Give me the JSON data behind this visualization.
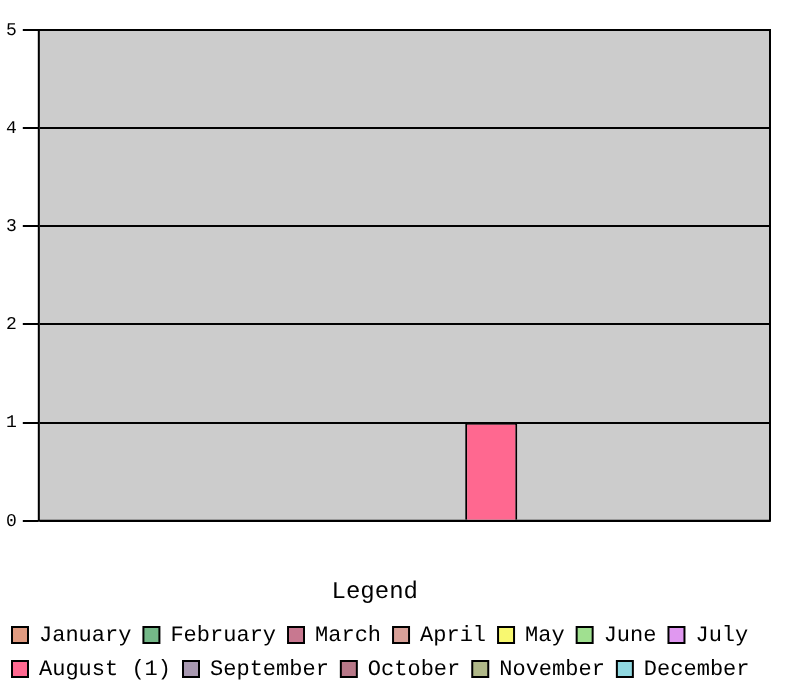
{
  "chart_data": {
    "type": "bar",
    "categories": [
      null
    ],
    "legend_title": "Legend",
    "legend": "bottom",
    "grid": "y",
    "ylim": [
      0,
      5
    ],
    "yticks": [
      0,
      1,
      2,
      3,
      4,
      5
    ],
    "series": [
      {
        "name": "January",
        "color": "#e09a80",
        "values": [
          0
        ]
      },
      {
        "name": "February",
        "color": "#74b888",
        "values": [
          0
        ]
      },
      {
        "name": "March",
        "color": "#c87890",
        "values": [
          0
        ]
      },
      {
        "name": "April",
        "color": "#d8a098",
        "values": [
          0
        ]
      },
      {
        "name": "May",
        "color": "#f8f870",
        "values": [
          0
        ]
      },
      {
        "name": "June",
        "color": "#a0e090",
        "values": [
          0
        ]
      },
      {
        "name": "July",
        "color": "#e098f0",
        "values": [
          0
        ]
      },
      {
        "name": "August (1)",
        "color": "#ff6890",
        "values": [
          1
        ]
      },
      {
        "name": "September",
        "color": "#a898b0",
        "values": [
          0
        ]
      },
      {
        "name": "October",
        "color": "#b87888",
        "values": [
          0
        ]
      },
      {
        "name": "November",
        "color": "#b0b888",
        "values": [
          0
        ]
      },
      {
        "name": "December",
        "color": "#90d8e0",
        "values": [
          0
        ]
      }
    ]
  }
}
